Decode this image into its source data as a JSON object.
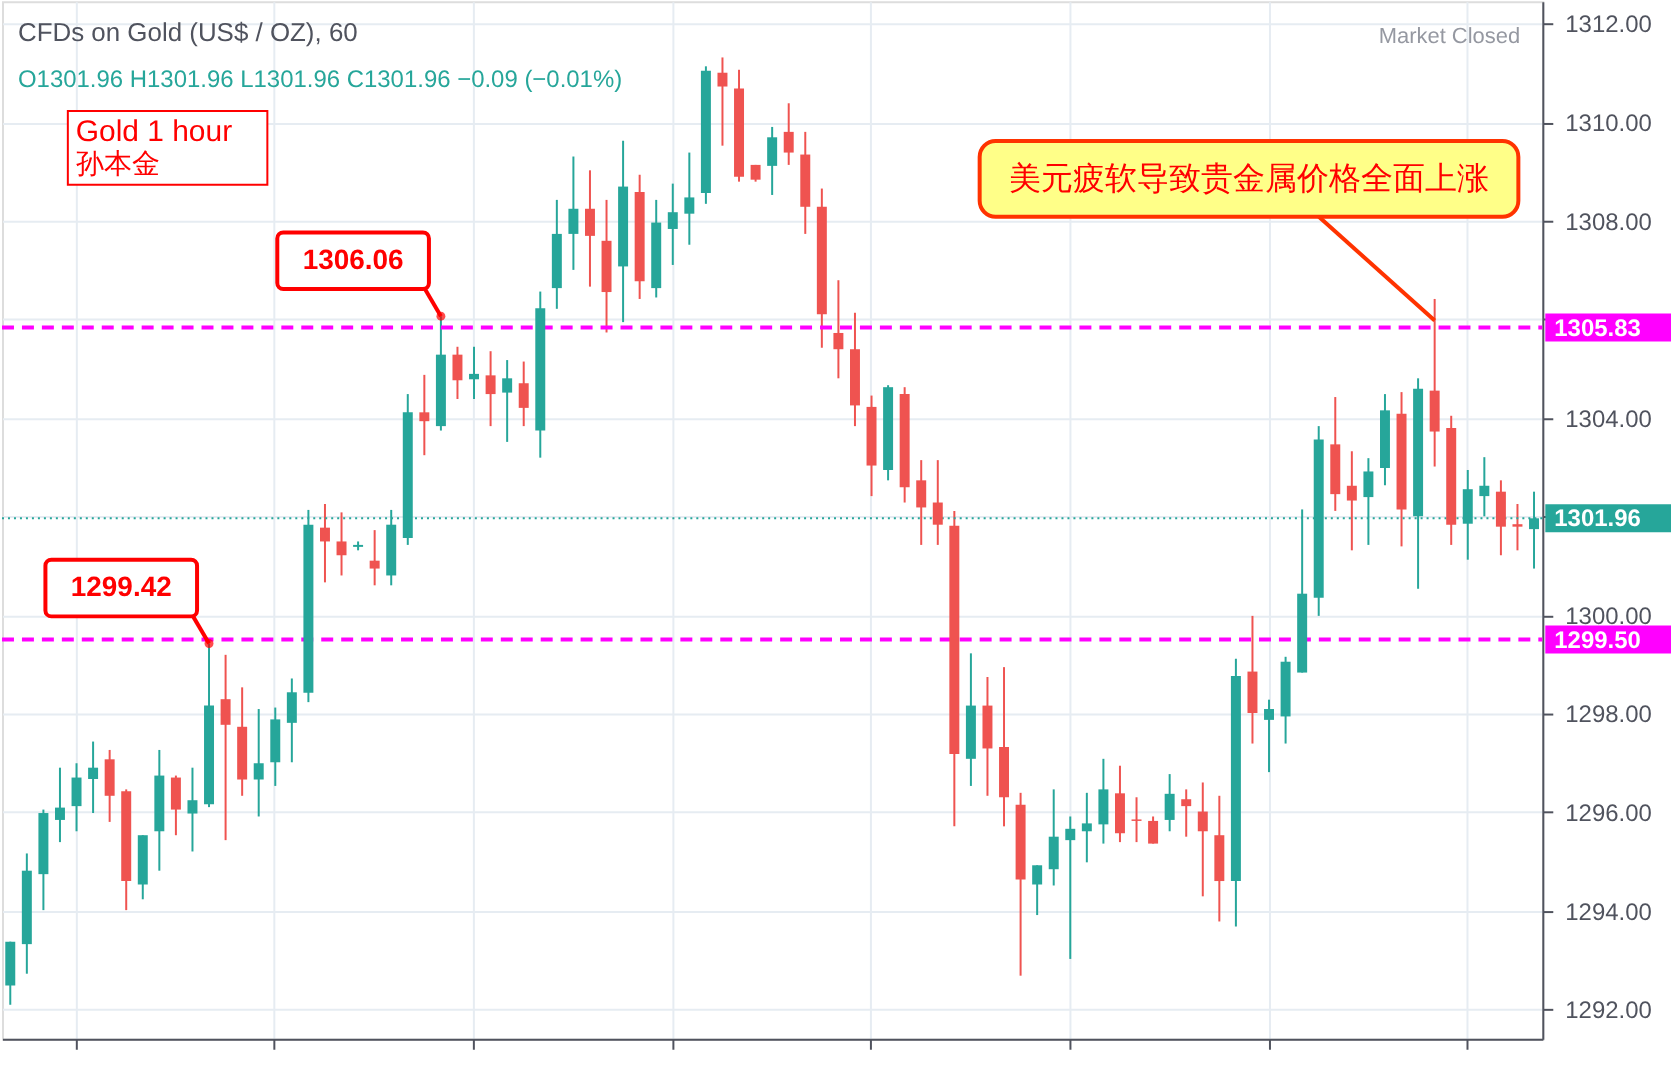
{
  "chart_data": {
    "type": "candlestick",
    "title": "CFDs on Gold (US$ / OZ), 60",
    "subtitle": "O1301.96  H1301.96  L1301.96  C1301.96  −0.09 (−0.01%)",
    "annotations": [
      "Market Closed",
      "Gold 1 hour",
      "孙本金",
      "美元疲软导致贵金属价格全面上涨",
      "1306.06",
      {
        "text": "1299.42",
        "y": 1299.42
      }
    ],
    "categories": [
      null,
      null,
      null,
      null,
      null,
      null,
      null,
      null,
      null,
      null,
      null,
      null,
      null,
      null,
      null,
      null,
      null,
      null,
      null,
      null,
      null,
      null,
      null,
      null,
      null,
      null,
      null,
      null,
      null,
      null,
      null,
      null,
      null,
      null,
      null,
      null,
      null,
      null,
      null,
      null,
      null,
      null,
      null,
      null,
      null,
      null,
      null,
      null,
      null,
      null,
      null,
      null,
      null,
      null,
      null,
      null,
      null,
      null,
      null,
      null,
      null,
      null,
      null,
      null,
      null,
      null,
      null,
      null,
      null,
      null,
      null,
      null,
      null,
      null,
      null,
      null,
      null,
      null,
      null,
      null,
      null,
      null,
      null,
      null,
      null,
      null,
      null,
      null,
      null,
      null,
      null,
      null,
      null
    ],
    "ohlc": [
      [
        1292.48,
        1293.37,
        1292.09,
        1293.37
      ],
      [
        1293.32,
        1295.16,
        1292.72,
        1294.81
      ],
      [
        1294.74,
        1296.05,
        1294.01,
        1295.98
      ],
      [
        1295.84,
        1296.9,
        1295.39,
        1296.09
      ],
      [
        1296.12,
        1296.99,
        1295.61,
        1296.7
      ],
      [
        1296.67,
        1297.43,
        1295.98,
        1296.9
      ],
      [
        1297.07,
        1297.26,
        1295.8,
        1296.33
      ],
      [
        1296.42,
        1296.46,
        1294.01,
        1294.6
      ],
      [
        1294.53,
        1295.53,
        1294.23,
        1295.53
      ],
      [
        1295.61,
        1297.26,
        1294.81,
        1296.74
      ],
      [
        1296.7,
        1296.74,
        1295.53,
        1296.05
      ],
      [
        1295.97,
        1296.9,
        1295.2,
        1296.24
      ],
      [
        1296.16,
        1299.42,
        1296.1,
        1298.16
      ],
      [
        1298.29,
        1299.19,
        1295.43,
        1297.77
      ],
      [
        1297.73,
        1298.53,
        1296.33,
        1296.66
      ],
      [
        1296.66,
        1298.09,
        1295.91,
        1296.99
      ],
      [
        1297.01,
        1298.12,
        1296.53,
        1297.88
      ],
      [
        1297.81,
        1298.71,
        1297.01,
        1298.43
      ],
      [
        1298.42,
        1302.13,
        1298.23,
        1301.83
      ],
      [
        1301.77,
        1302.25,
        1300.66,
        1301.49
      ],
      [
        1301.49,
        1302.08,
        1300.8,
        1301.21
      ],
      [
        1301.38,
        1301.49,
        1301.31,
        1301.42
      ],
      [
        1301.1,
        1301.72,
        1300.6,
        1300.94
      ],
      [
        1300.8,
        1302.13,
        1300.6,
        1301.83
      ],
      [
        1301.56,
        1304.48,
        1301.42,
        1304.11
      ],
      [
        1304.11,
        1304.87,
        1303.24,
        1303.93
      ],
      [
        1303.83,
        1306.06,
        1303.74,
        1305.28
      ],
      [
        1305.28,
        1305.44,
        1304.38,
        1304.76
      ],
      [
        1304.78,
        1305.44,
        1304.38,
        1304.89
      ],
      [
        1304.86,
        1305.35,
        1303.83,
        1304.48
      ],
      [
        1304.51,
        1305.17,
        1303.51,
        1304.8
      ],
      [
        1304.7,
        1305.14,
        1303.83,
        1304.2
      ],
      [
        1303.74,
        1306.56,
        1303.19,
        1306.22
      ],
      [
        1306.63,
        1308.42,
        1306.21,
        1307.73
      ],
      [
        1307.73,
        1309.3,
        1307.0,
        1308.24
      ],
      [
        1308.24,
        1309.02,
        1306.66,
        1307.69
      ],
      [
        1307.59,
        1308.42,
        1305.73,
        1306.55
      ],
      [
        1307.07,
        1309.62,
        1305.94,
        1308.69
      ],
      [
        1308.58,
        1308.93,
        1306.41,
        1306.77
      ],
      [
        1306.63,
        1308.42,
        1306.44,
        1307.96
      ],
      [
        1307.83,
        1308.75,
        1307.1,
        1308.17
      ],
      [
        1308.14,
        1309.38,
        1307.51,
        1308.47
      ],
      [
        1308.56,
        1311.13,
        1308.34,
        1311.04
      ],
      [
        1311.0,
        1311.31,
        1309.52,
        1310.72
      ],
      [
        1310.68,
        1311.06,
        1308.79,
        1308.89
      ],
      [
        1309.13,
        1309.13,
        1308.79,
        1308.83
      ],
      [
        1309.11,
        1309.9,
        1308.52,
        1309.69
      ],
      [
        1309.8,
        1310.38,
        1309.13,
        1309.38
      ],
      [
        1309.34,
        1309.8,
        1307.73,
        1308.28
      ],
      [
        1308.28,
        1308.65,
        1305.42,
        1306.1
      ],
      [
        1305.72,
        1306.79,
        1304.8,
        1305.39
      ],
      [
        1305.39,
        1306.13,
        1303.83,
        1304.25
      ],
      [
        1304.22,
        1304.45,
        1302.41,
        1303.03
      ],
      [
        1302.94,
        1304.66,
        1302.73,
        1304.62
      ],
      [
        1304.48,
        1304.62,
        1302.28,
        1302.59
      ],
      [
        1302.73,
        1303.14,
        1301.42,
        1302.18
      ],
      [
        1302.28,
        1303.14,
        1301.42,
        1301.83
      ],
      [
        1301.81,
        1302.11,
        1295.71,
        1297.18
      ],
      [
        1297.08,
        1299.22,
        1296.53,
        1298.16
      ],
      [
        1298.16,
        1298.74,
        1296.33,
        1297.29
      ],
      [
        1297.32,
        1298.94,
        1295.71,
        1296.3
      ],
      [
        1296.15,
        1296.39,
        1292.68,
        1294.63
      ],
      [
        1294.53,
        1294.92,
        1293.91,
        1294.92
      ],
      [
        1294.84,
        1296.46,
        1294.51,
        1295.5
      ],
      [
        1295.43,
        1295.91,
        1293.02,
        1295.66
      ],
      [
        1295.61,
        1296.39,
        1294.98,
        1295.77
      ],
      [
        1295.75,
        1297.08,
        1295.36,
        1296.46
      ],
      [
        1296.38,
        1296.94,
        1295.39,
        1295.57
      ],
      [
        1295.85,
        1296.3,
        1295.39,
        1295.82
      ],
      [
        1295.82,
        1295.91,
        1295.36,
        1295.36
      ],
      [
        1295.84,
        1296.77,
        1295.61,
        1296.37
      ],
      [
        1296.26,
        1296.46,
        1295.5,
        1296.12
      ],
      [
        1296.01,
        1296.6,
        1294.29,
        1295.61
      ],
      [
        1295.53,
        1296.33,
        1293.78,
        1294.6
      ],
      [
        1294.6,
        1299.11,
        1293.68,
        1298.76
      ],
      [
        1298.85,
        1299.98,
        1297.39,
        1298.01
      ],
      [
        1297.87,
        1298.28,
        1296.81,
        1298.09
      ],
      [
        1297.94,
        1299.15,
        1297.39,
        1299.05
      ],
      [
        1298.83,
        1302.14,
        1298.83,
        1300.43
      ],
      [
        1300.35,
        1303.83,
        1299.98,
        1303.56
      ],
      [
        1303.46,
        1304.42,
        1302.11,
        1302.45
      ],
      [
        1302.62,
        1303.32,
        1301.31,
        1302.32
      ],
      [
        1302.39,
        1303.18,
        1301.42,
        1302.91
      ],
      [
        1302.98,
        1304.48,
        1302.63,
        1304.15
      ],
      [
        1304.08,
        1304.52,
        1301.39,
        1302.14
      ],
      [
        1302.0,
        1304.8,
        1300.53,
        1304.59
      ],
      [
        1304.55,
        1306.41,
        1303.01,
        1303.72
      ],
      [
        1303.79,
        1304.04,
        1301.42,
        1301.83
      ],
      [
        1301.85,
        1302.94,
        1301.12,
        1302.55
      ],
      [
        1302.41,
        1303.2,
        1302.0,
        1302.62
      ],
      [
        1302.5,
        1302.73,
        1301.21,
        1301.79
      ],
      [
        1301.84,
        1302.25,
        1301.31,
        1301.79
      ],
      [
        1301.74,
        1302.5,
        1300.94,
        1301.96
      ]
    ],
    "colors": [
      "#26a69a",
      "#26a69a",
      "#26a69a",
      "#26a69a",
      "#26a69a",
      "#26a69a",
      "#ef5350",
      "#ef5350",
      "#26a69a",
      "#26a69a",
      "#ef5350",
      "#26a69a",
      "#26a69a",
      "#ef5350",
      "#ef5350",
      "#26a69a",
      "#26a69a",
      "#26a69a",
      "#26a69a",
      "#ef5350",
      "#ef5350",
      "#26a69a",
      "#ef5350",
      "#26a69a",
      "#26a69a",
      "#ef5350",
      "#26a69a",
      "#ef5350",
      "#26a69a",
      "#ef5350",
      "#26a69a",
      "#ef5350",
      "#26a69a",
      "#26a69a",
      "#26a69a",
      "#ef5350",
      "#ef5350",
      "#26a69a",
      "#ef5350",
      "#26a69a",
      "#26a69a",
      "#26a69a",
      "#26a69a",
      "#ef5350",
      "#ef5350",
      "#ef5350",
      "#26a69a",
      "#ef5350",
      "#ef5350",
      "#ef5350",
      "#ef5350",
      "#ef5350",
      "#ef5350",
      "#26a69a",
      "#ef5350",
      "#ef5350",
      "#ef5350",
      "#ef5350",
      "#26a69a",
      "#ef5350",
      "#ef5350",
      "#ef5350",
      "#26a69a",
      "#26a69a",
      "#26a69a",
      "#26a69a",
      "#26a69a",
      "#ef5350",
      "#ef5350",
      "#ef5350",
      "#26a69a",
      "#ef5350",
      "#ef5350",
      "#ef5350",
      "#26a69a",
      "#ef5350",
      "#26a69a",
      "#26a69a",
      "#26a69a",
      "#26a69a",
      "#ef5350",
      "#ef5350",
      "#26a69a",
      "#26a69a",
      "#ef5350",
      "#26a69a",
      "#ef5350",
      "#ef5350",
      "#26a69a",
      "#26a69a",
      "#ef5350",
      "#ef5350",
      "#26a69a"
    ],
    "ylim": [
      1291.4,
      1312.45
    ],
    "yticks": [
      {
        "value": 1292,
        "label": "1292.00"
      },
      {
        "value": 1294,
        "label": "1294.00"
      },
      {
        "value": 1296,
        "label": "1296.00"
      },
      {
        "value": 1298,
        "label": "1298.00"
      },
      {
        "value": 1300,
        "label": "1300.00"
      },
      {
        "value": 1302,
        "label": null
      },
      {
        "value": 1304,
        "label": "1304.00"
      },
      {
        "value": 1306,
        "label": null
      },
      {
        "value": 1308,
        "label": "1308.00"
      },
      {
        "value": 1310,
        "label": "1310.00"
      },
      {
        "value": 1312,
        "label": "1312.00"
      }
    ],
    "ref_lines": [
      {
        "axis": "y",
        "value": 1305.83,
        "label": "1305.83",
        "color": "#ff00ff",
        "line_style": "dashed"
      },
      {
        "axis": "y",
        "value": 1299.5,
        "label": "1299.50",
        "color": "#ff00ff",
        "line_style": "dashed"
      },
      {
        "axis": "y",
        "value": 1301.96,
        "label": "1301.96",
        "color": "#26a69a",
        "line_style": "dotted"
      }
    ],
    "grid": true,
    "tick_labels": "y"
  }
}
